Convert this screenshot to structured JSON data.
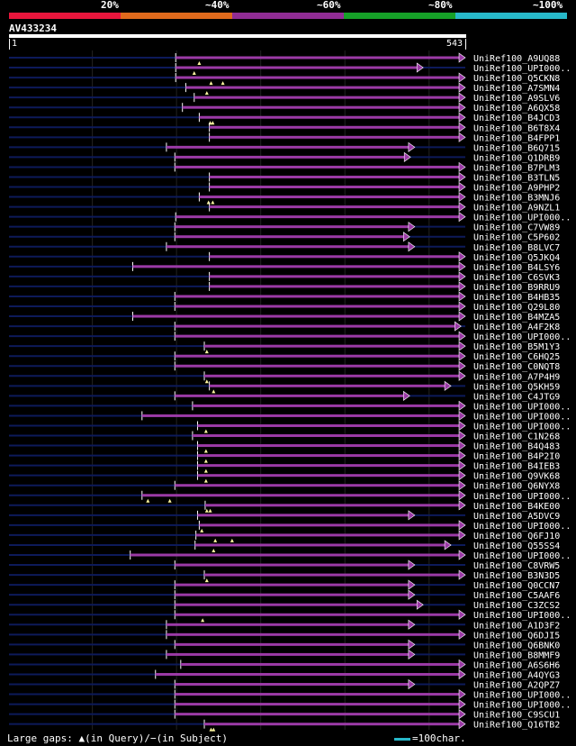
{
  "scale": {
    "labels": [
      "20%",
      "~40%",
      "~60%",
      "~80%",
      "~100%"
    ],
    "colors": [
      "#e8163c",
      "#e06a1c",
      "#902c94",
      "#16a028",
      "#27b8c9"
    ]
  },
  "query": {
    "id": "AV433234",
    "start": "1",
    "end": "543",
    "length": 543
  },
  "colors": {
    "hit": "#9b3aa6",
    "track": "#0d1a5a",
    "grid": "#222222",
    "gap": "#fff8a0"
  },
  "footer": {
    "legend": "Large gaps: ▲(in Query)/−(in Subject)",
    "scale_note": "=100char."
  },
  "chart_data": {
    "type": "alignment",
    "x_unit": "query position",
    "hits": [
      {
        "name": "UniRef100_A9UQ88",
        "start": 199,
        "end": 543,
        "arrow": true,
        "gaps": [
          227
        ]
      },
      {
        "name": "UniRef100_UPI000..",
        "start": 199,
        "end": 493,
        "arrow": true,
        "gaps": [
          221
        ]
      },
      {
        "name": "UniRef100_Q5CKN8",
        "start": 199,
        "end": 543,
        "arrow": true,
        "gaps": [
          241,
          255
        ]
      },
      {
        "name": "UniRef100_A7SMN4",
        "start": 211,
        "end": 543,
        "arrow": true,
        "gaps": [
          236
        ]
      },
      {
        "name": "UniRef100_A9SLV6",
        "start": 221,
        "end": 543,
        "arrow": true,
        "gaps": []
      },
      {
        "name": "UniRef100_A6QX58",
        "start": 207,
        "end": 543,
        "arrow": true,
        "gaps": []
      },
      {
        "name": "UniRef100_B4JCD3",
        "start": 227,
        "end": 543,
        "arrow": true,
        "gaps": [
          240,
          243
        ]
      },
      {
        "name": "UniRef100_B6T8X4",
        "start": 239,
        "end": 543,
        "arrow": true,
        "gaps": []
      },
      {
        "name": "UniRef100_B4FPP1",
        "start": 239,
        "end": 543,
        "arrow": true,
        "gaps": []
      },
      {
        "name": "UniRef100_B6Q715",
        "start": 188,
        "end": 483,
        "arrow": true,
        "gaps": []
      },
      {
        "name": "UniRef100_Q1DRB9",
        "start": 198,
        "end": 478,
        "arrow": true,
        "gaps": []
      },
      {
        "name": "UniRef100_B7PLM3",
        "start": 198,
        "end": 543,
        "arrow": true,
        "gaps": []
      },
      {
        "name": "UniRef100_B3TLN5",
        "start": 239,
        "end": 543,
        "arrow": true,
        "gaps": []
      },
      {
        "name": "UniRef100_A9PHP2",
        "start": 239,
        "end": 543,
        "arrow": true,
        "gaps": []
      },
      {
        "name": "UniRef100_B3MNJ6",
        "start": 227,
        "end": 543,
        "arrow": true,
        "gaps": [
          238,
          243
        ]
      },
      {
        "name": "UniRef100_A9NZL1",
        "start": 239,
        "end": 543,
        "arrow": true,
        "gaps": []
      },
      {
        "name": "UniRef100_UPI000..",
        "start": 199,
        "end": 543,
        "arrow": true,
        "gaps": []
      },
      {
        "name": "UniRef100_C7VW89",
        "start": 198,
        "end": 483,
        "arrow": true,
        "gaps": []
      },
      {
        "name": "UniRef100_C5P602",
        "start": 198,
        "end": 477,
        "arrow": true,
        "gaps": []
      },
      {
        "name": "UniRef100_B8LVC7",
        "start": 188,
        "end": 483,
        "arrow": true,
        "gaps": []
      },
      {
        "name": "UniRef100_Q5JKQ4",
        "start": 239,
        "end": 543,
        "arrow": true,
        "gaps": []
      },
      {
        "name": "UniRef100_B4LSY6",
        "start": 148,
        "end": 543,
        "arrow": true,
        "gaps": []
      },
      {
        "name": "UniRef100_C6SVK3",
        "start": 239,
        "end": 543,
        "arrow": true,
        "gaps": []
      },
      {
        "name": "UniRef100_B9RRU9",
        "start": 239,
        "end": 543,
        "arrow": true,
        "gaps": []
      },
      {
        "name": "UniRef100_B4HB35",
        "start": 198,
        "end": 543,
        "arrow": true,
        "gaps": []
      },
      {
        "name": "UniRef100_Q29L80",
        "start": 198,
        "end": 543,
        "arrow": true,
        "gaps": []
      },
      {
        "name": "UniRef100_B4MZA5",
        "start": 148,
        "end": 543,
        "arrow": true,
        "gaps": []
      },
      {
        "name": "UniRef100_A4F2K8",
        "start": 198,
        "end": 538,
        "arrow": true,
        "gaps": []
      },
      {
        "name": "UniRef100_UPI000..",
        "start": 198,
        "end": 543,
        "arrow": true,
        "gaps": []
      },
      {
        "name": "UniRef100_B5M1Y3",
        "start": 233,
        "end": 543,
        "arrow": true,
        "gaps": [
          236
        ]
      },
      {
        "name": "UniRef100_C6HQ25",
        "start": 198,
        "end": 543,
        "arrow": true,
        "gaps": []
      },
      {
        "name": "UniRef100_C0NQT8",
        "start": 198,
        "end": 543,
        "arrow": true,
        "gaps": []
      },
      {
        "name": "UniRef100_A7P4H9",
        "start": 233,
        "end": 543,
        "arrow": true,
        "gaps": [
          236
        ]
      },
      {
        "name": "UniRef100_Q5KH59",
        "start": 239,
        "end": 526,
        "arrow": true,
        "gaps": [
          244
        ]
      },
      {
        "name": "UniRef100_C4JTG9",
        "start": 198,
        "end": 477,
        "arrow": true,
        "gaps": []
      },
      {
        "name": "UniRef100_UPI000..",
        "start": 219,
        "end": 543,
        "arrow": true,
        "gaps": []
      },
      {
        "name": "UniRef100_UPI000..",
        "start": 159,
        "end": 543,
        "arrow": true,
        "gaps": []
      },
      {
        "name": "UniRef100_UPI000..",
        "start": 225,
        "end": 543,
        "arrow": true,
        "gaps": [
          235
        ]
      },
      {
        "name": "UniRef100_C1N268",
        "start": 219,
        "end": 543,
        "arrow": true,
        "gaps": []
      },
      {
        "name": "UniRef100_B4Q483",
        "start": 225,
        "end": 543,
        "arrow": true,
        "gaps": [
          235
        ]
      },
      {
        "name": "UniRef100_B4P2I0",
        "start": 225,
        "end": 543,
        "arrow": true,
        "gaps": [
          235
        ]
      },
      {
        "name": "UniRef100_B4IEB3",
        "start": 225,
        "end": 543,
        "arrow": true,
        "gaps": [
          235
        ]
      },
      {
        "name": "UniRef100_Q9VK68",
        "start": 225,
        "end": 543,
        "arrow": true,
        "gaps": [
          235
        ]
      },
      {
        "name": "UniRef100_Q6NYX8",
        "start": 198,
        "end": 543,
        "arrow": true,
        "gaps": []
      },
      {
        "name": "UniRef100_UPI000..",
        "start": 159,
        "end": 543,
        "arrow": true,
        "gaps": [
          166,
          192
        ]
      },
      {
        "name": "UniRef100_B4KE00",
        "start": 234,
        "end": 543,
        "arrow": true,
        "gaps": [
          236,
          240
        ]
      },
      {
        "name": "UniRef100_A5DVC9",
        "start": 225,
        "end": 483,
        "arrow": true,
        "gaps": []
      },
      {
        "name": "UniRef100_UPI000..",
        "start": 227,
        "end": 543,
        "arrow": true,
        "gaps": [
          230
        ]
      },
      {
        "name": "UniRef100_Q6FJ10",
        "start": 223,
        "end": 543,
        "arrow": true,
        "gaps": [
          246,
          266
        ]
      },
      {
        "name": "UniRef100_Q55SS4",
        "start": 222,
        "end": 526,
        "arrow": true,
        "gaps": [
          244
        ]
      },
      {
        "name": "UniRef100_UPI000..",
        "start": 145,
        "end": 543,
        "arrow": true,
        "gaps": []
      },
      {
        "name": "UniRef100_C8VRW5",
        "start": 198,
        "end": 483,
        "arrow": true,
        "gaps": []
      },
      {
        "name": "UniRef100_B3N3D5",
        "start": 233,
        "end": 543,
        "arrow": true,
        "gaps": [
          236
        ]
      },
      {
        "name": "UniRef100_Q0CCN7",
        "start": 198,
        "end": 483,
        "arrow": true,
        "gaps": []
      },
      {
        "name": "UniRef100_C5AAF6",
        "start": 198,
        "end": 483,
        "arrow": true,
        "gaps": []
      },
      {
        "name": "UniRef100_C3ZCS2",
        "start": 198,
        "end": 493,
        "arrow": true,
        "gaps": []
      },
      {
        "name": "UniRef100_UPI000..",
        "start": 198,
        "end": 543,
        "arrow": true,
        "gaps": [
          231
        ]
      },
      {
        "name": "UniRef100_A1D3F2",
        "start": 188,
        "end": 483,
        "arrow": true,
        "gaps": []
      },
      {
        "name": "UniRef100_Q6DJI5",
        "start": 188,
        "end": 543,
        "arrow": true,
        "gaps": []
      },
      {
        "name": "UniRef100_Q6BNK0",
        "start": 198,
        "end": 483,
        "arrow": true,
        "gaps": []
      },
      {
        "name": "UniRef100_B8MMF9",
        "start": 188,
        "end": 483,
        "arrow": true,
        "gaps": []
      },
      {
        "name": "UniRef100_A6S6H6",
        "start": 205,
        "end": 543,
        "arrow": true,
        "gaps": []
      },
      {
        "name": "UniRef100_A4QYG3",
        "start": 175,
        "end": 543,
        "arrow": true,
        "gaps": []
      },
      {
        "name": "UniRef100_A2QPZ7",
        "start": 198,
        "end": 483,
        "arrow": true,
        "gaps": []
      },
      {
        "name": "UniRef100_UPI000..",
        "start": 198,
        "end": 543,
        "arrow": true,
        "gaps": []
      },
      {
        "name": "UniRef100_UPI000..",
        "start": 198,
        "end": 543,
        "arrow": true,
        "gaps": []
      },
      {
        "name": "UniRef100_C9SCU1",
        "start": 198,
        "end": 543,
        "arrow": true,
        "gaps": []
      },
      {
        "name": "UniRef100_Q16TB2",
        "start": 233,
        "end": 543,
        "arrow": true,
        "gaps": [
          241,
          244
        ]
      }
    ]
  }
}
